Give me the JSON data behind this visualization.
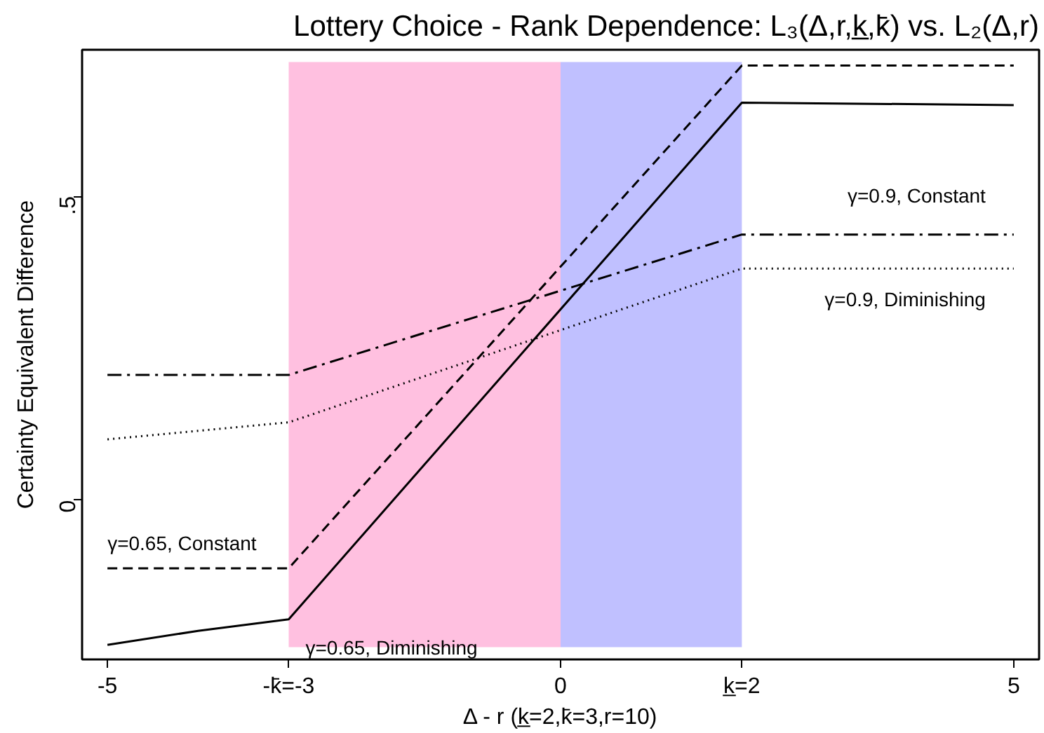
{
  "chart_data": {
    "type": "line",
    "title": "Lottery Choice - Rank Dependence: L₃(Δ,r,k̲,k̄) vs. L₂(Δ,r)",
    "xlabel": "Δ - r (k̲=2,k̄=3,r=10)",
    "ylabel": "Certainty Equivalent Difference",
    "xlim": [
      -5.28,
      5.28
    ],
    "ylim": [
      -0.262,
      0.741
    ],
    "xticks": [
      -5,
      {
        "value": -3,
        "label": "-k̄=-3"
      },
      0,
      {
        "value": 2,
        "label": "k̲=2"
      },
      5
    ],
    "yticks": [
      0,
      {
        "value": 0.5,
        "label": ".5"
      }
    ],
    "grid": false,
    "legend": false,
    "marker": "none",
    "series": [
      {
        "name": "γ=0.65, Diminishing",
        "color": "#000000",
        "line_style": "solid",
        "x": [
          -5,
          -4,
          -3,
          2,
          5
        ],
        "values": [
          -0.238,
          -0.215,
          -0.196,
          0.654,
          0.65
        ]
      },
      {
        "name": "γ=0.65, Constant",
        "color": "#000000",
        "line_style": "dashed",
        "x": [
          -5,
          -3,
          2,
          5
        ],
        "values": [
          -0.112,
          -0.112,
          0.715,
          0.715
        ]
      },
      {
        "name": "γ=0.9, Constant",
        "color": "#000000",
        "line_style": "dashdot",
        "x": [
          -5,
          -3,
          2,
          5
        ],
        "values": [
          0.206,
          0.206,
          0.437,
          0.437
        ]
      },
      {
        "name": "γ=0.9, Diminishing",
        "color": "#000000",
        "line_style": "dotted",
        "x": [
          -5,
          -3,
          2,
          5
        ],
        "values": [
          0.1,
          0.128,
          0.381,
          0.381
        ]
      }
    ],
    "bands": [
      {
        "axis": "x",
        "from": -3,
        "to": 0,
        "color": "#ffc0e0"
      },
      {
        "axis": "x",
        "from": 0,
        "to": 2,
        "color": "#c0c0ff"
      }
    ]
  }
}
